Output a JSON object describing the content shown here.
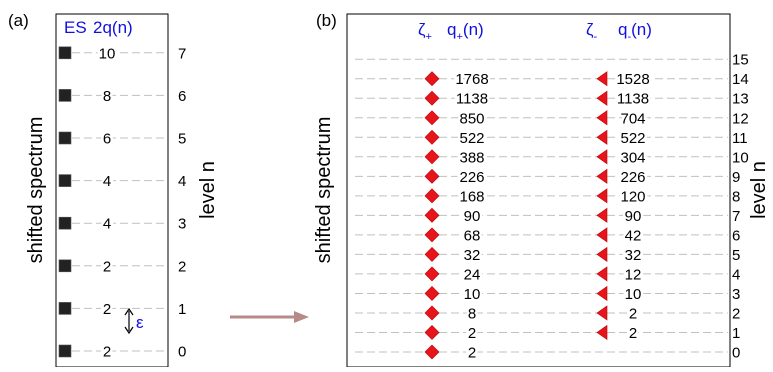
{
  "panel_a": {
    "tag": "(a)",
    "y_label": "shifted spectrum",
    "right_label": "level n",
    "header_es": "ES",
    "header_q": "2q(n)",
    "epsilon": "ε",
    "rows": [
      {
        "level": "0",
        "value": "2"
      },
      {
        "level": "1",
        "value": "2"
      },
      {
        "level": "2",
        "value": "2"
      },
      {
        "level": "3",
        "value": "4"
      },
      {
        "level": "4",
        "value": "4"
      },
      {
        "level": "5",
        "value": "6"
      },
      {
        "level": "6",
        "value": "8"
      },
      {
        "level": "7",
        "value": "10"
      }
    ]
  },
  "panel_b": {
    "tag": "(b)",
    "y_label": "shifted spectrum",
    "right_label": "level n",
    "zeta_plus": "ζ+",
    "zeta_minus": "ζ-",
    "q_plus": "q+(n)",
    "q_minus": "q-(n)",
    "levels": [
      "0",
      "1",
      "2",
      "3",
      "4",
      "5",
      "6",
      "7",
      "8",
      "9",
      "10",
      "11",
      "12",
      "13",
      "14",
      "15"
    ],
    "q_plus_values": [
      "2",
      "2",
      "8",
      "10",
      "24",
      "32",
      "68",
      "90",
      "168",
      "226",
      "388",
      "522",
      "850",
      "1138",
      "1768"
    ],
    "q_minus_values": [
      "2",
      "2",
      "10",
      "12",
      "32",
      "42",
      "90",
      "120",
      "226",
      "304",
      "522",
      "704",
      "1138",
      "1528"
    ]
  },
  "colors": {
    "marker_red": "#e8141c",
    "label_blue": "#1010e0",
    "arrow": "#b78a87",
    "dash": "#c0c0c0",
    "square": "#222222"
  }
}
